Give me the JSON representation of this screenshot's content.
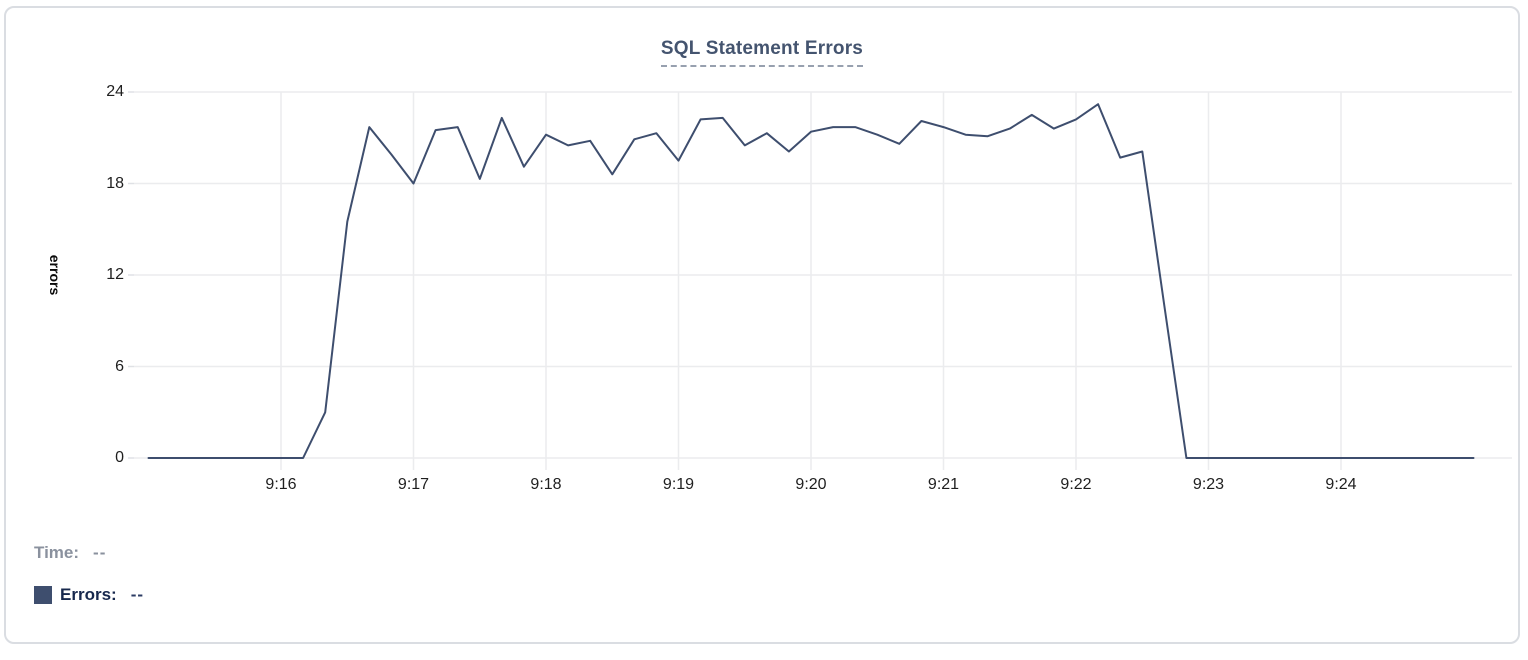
{
  "chart": {
    "title": "SQL Statement Errors",
    "ylabel": "errors"
  },
  "legend": {
    "time_label": "Time:",
    "time_value": "--",
    "errors_label": "Errors:",
    "errors_value": "--",
    "swatch_color": "#3e4e6e"
  },
  "colors": {
    "line": "#3e4e6e",
    "grid": "#ebecee",
    "tick_stub": "#dfe1e5",
    "title": "#44546f",
    "title_underline": "#97a0af",
    "tick_text": "#1f1f1f",
    "time_label": "#8a919e",
    "errors_label": "#17284d"
  },
  "chart_data": {
    "type": "line",
    "title": "SQL Statement Errors",
    "xlabel": "",
    "ylabel": "errors",
    "ylim": [
      0,
      24
    ],
    "y_tick_labels": [
      "24",
      "18",
      "12",
      "6",
      "0"
    ],
    "y_tick_values": [
      24,
      18,
      12,
      6,
      0
    ],
    "x_tick_labels": [
      "9:16",
      "9:17",
      "9:18",
      "9:19",
      "9:20",
      "9:21",
      "9:22",
      "9:23",
      "9:24"
    ],
    "grid": true,
    "legend_position": "bottom-left",
    "series": [
      {
        "name": "Errors",
        "color": "#3e4e6e",
        "start_time": "9:15:00",
        "end_time": "9:25:00",
        "interval_seconds": 10,
        "values": [
          0,
          0,
          0,
          0,
          0,
          0,
          0,
          0,
          3,
          15.5,
          21.7,
          19.9,
          18,
          21.5,
          21.7,
          18.3,
          22.3,
          19.1,
          21.2,
          20.5,
          20.8,
          18.6,
          20.9,
          21.3,
          19.5,
          22.2,
          22.3,
          20.5,
          21.3,
          20.1,
          21.4,
          21.7,
          21.7,
          21.2,
          20.6,
          22.1,
          21.7,
          21.2,
          21.1,
          21.6,
          22.5,
          21.6,
          22.2,
          23.2,
          19.7,
          20.1,
          10,
          0,
          0,
          0,
          0,
          0,
          0,
          0,
          0,
          0,
          0,
          0,
          0,
          0,
          0
        ]
      }
    ]
  }
}
